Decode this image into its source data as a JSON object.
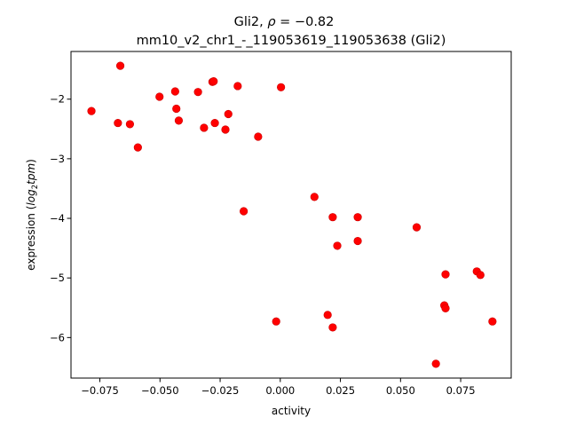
{
  "chart_data": {
    "type": "scatter",
    "title_line1_prefix": "Gli2, ",
    "title_line1_rho": "ρ",
    "title_line1_suffix": " = −0.82",
    "title_line2": "mm10_v2_chr1_-_119053619_119053638 (Gli2)",
    "xlabel": "activity",
    "ylabel_prefix": "expression (",
    "ylabel_math": "log",
    "ylabel_sub": "2",
    "ylabel_math2": "tpm",
    "ylabel_suffix": ")",
    "xlim": [
      -0.087,
      0.096
    ],
    "ylim": [
      -6.68,
      -1.2
    ],
    "xticks": [
      -0.075,
      -0.05,
      -0.025,
      0.0,
      0.025,
      0.05,
      0.075
    ],
    "xtick_labels": [
      "−0.075",
      "−0.050",
      "−0.025",
      "0.000",
      "0.025",
      "0.050",
      "0.075"
    ],
    "yticks": [
      -6,
      -5,
      -4,
      -3,
      -2
    ],
    "ytick_labels": [
      "−6",
      "−5",
      "−4",
      "−3",
      "−2"
    ],
    "point_color": "#ff0000",
    "grid": false,
    "x": [
      -0.0785,
      -0.0665,
      -0.0675,
      -0.0625,
      -0.0592,
      -0.0502,
      -0.0437,
      -0.0432,
      -0.0422,
      -0.0342,
      -0.0317,
      -0.0282,
      -0.0277,
      -0.0272,
      -0.0228,
      -0.0216,
      -0.0177,
      -0.0152,
      -0.0092,
      -0.0017,
      0.0003,
      0.0142,
      0.0197,
      0.0218,
      0.0218,
      0.0237,
      0.0322,
      0.0322,
      0.0567,
      0.0647,
      0.0682,
      0.0687,
      0.0687,
      0.0817,
      0.0832,
      0.0882
    ],
    "y": [
      -2.2,
      -1.44,
      -2.4,
      -2.42,
      -2.81,
      -1.96,
      -1.87,
      -2.16,
      -2.36,
      -1.88,
      -2.48,
      -1.71,
      -1.7,
      -2.4,
      -2.51,
      -2.25,
      -1.78,
      -3.88,
      -2.63,
      -5.73,
      -1.8,
      -3.64,
      -5.62,
      -3.98,
      -5.83,
      -4.46,
      -3.98,
      -4.38,
      -4.15,
      -6.44,
      -5.46,
      -5.51,
      -4.94,
      -4.89,
      -4.95,
      -5.73
    ]
  }
}
